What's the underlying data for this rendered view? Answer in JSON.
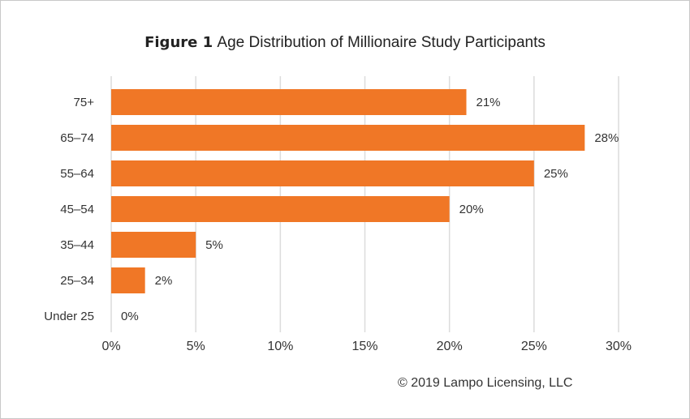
{
  "chart_data": {
    "type": "bar",
    "orientation": "horizontal",
    "title_prefix": "Figure 1",
    "title": "Age Distribution of Millionaire Study Participants",
    "categories": [
      "75+",
      "65–74",
      "55–64",
      "45–54",
      "35–44",
      "25–34",
      "Under 25"
    ],
    "values": [
      21,
      28,
      25,
      20,
      5,
      2,
      0
    ],
    "value_labels": [
      "21%",
      "28%",
      "25%",
      "20%",
      "5%",
      "2%",
      "0%"
    ],
    "xlim": [
      0,
      30
    ],
    "xticks": [
      0,
      5,
      10,
      15,
      20,
      25,
      30
    ],
    "xtick_labels": [
      "0%",
      "5%",
      "10%",
      "15%",
      "20%",
      "25%",
      "30%"
    ],
    "xlabel": "",
    "ylabel": "",
    "grid": true,
    "bar_color": "#f07726",
    "grid_color": "#dcdcdc"
  },
  "footer": {
    "copyright": "© 2019 Lampo Licensing, LLC"
  }
}
